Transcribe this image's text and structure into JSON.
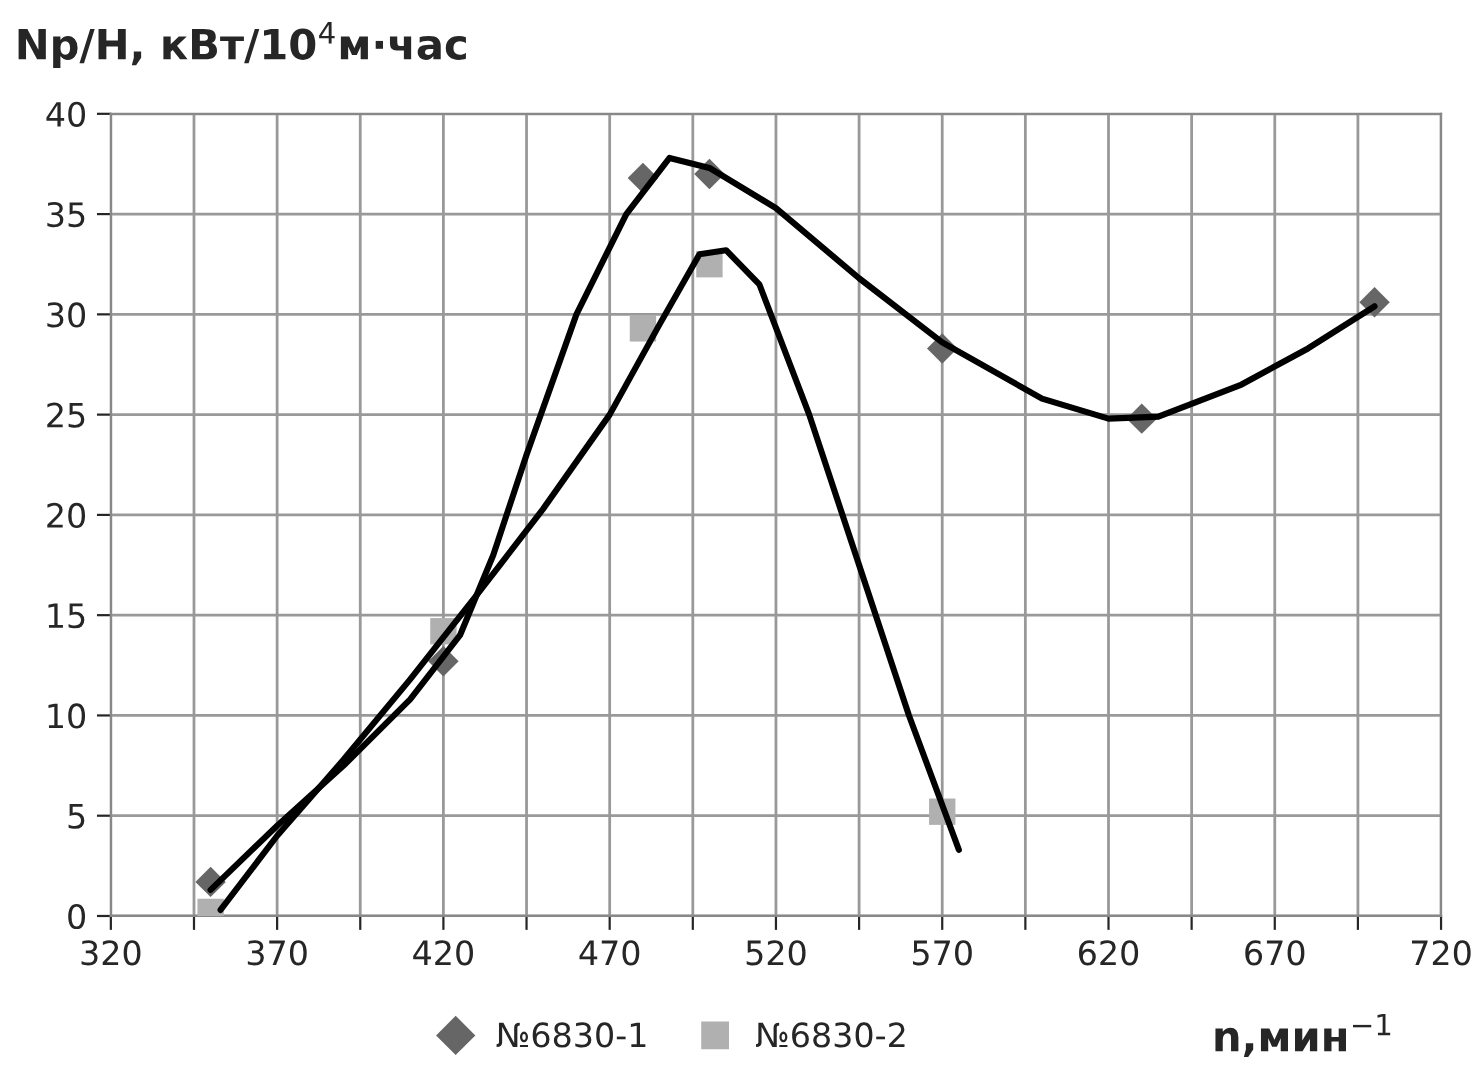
{
  "chart_data": {
    "type": "scatter",
    "ylabel": "Np/H, кВт/10$^{4}$м·час",
    "xlabel": "n,мин$^{−1}$",
    "xlim": [
      320,
      720
    ],
    "ylim": [
      0,
      40
    ],
    "xticks": [
      320,
      {
        "value": 345,
        "label": null
      },
      370,
      {
        "value": 395,
        "label": null
      },
      420,
      {
        "value": 445,
        "label": null
      },
      470,
      {
        "value": 495,
        "label": null
      },
      520,
      {
        "value": 545,
        "label": null
      },
      570,
      {
        "value": 595,
        "label": null
      },
      620,
      {
        "value": 645,
        "label": null
      },
      670,
      {
        "value": 695,
        "label": null
      },
      720
    ],
    "yticks": [
      0,
      5,
      10,
      15,
      20,
      25,
      30,
      35,
      40
    ],
    "grid": true,
    "legend": "bottom",
    "series": [
      {
        "name": "№6830-1",
        "color": "#666666",
        "marker": "diamond",
        "x": [
          350,
          420,
          480,
          500,
          570,
          630,
          700
        ],
        "values": [
          1.7,
          12.7,
          36.8,
          37.0,
          28.3,
          24.8,
          30.6
        ]
      },
      {
        "name": "№6830-2",
        "color": "#b0b0b0",
        "marker": "square",
        "x": [
          350,
          420,
          480,
          500,
          570
        ],
        "values": [
          0.2,
          14.2,
          29.3,
          32.5,
          5.2
        ]
      },
      {
        "type": "line",
        "color": "#000000",
        "marker": "none",
        "line_style": "solid",
        "x": [
          350,
          370,
          390,
          410,
          425,
          435,
          445,
          460,
          475,
          488,
          500,
          520,
          545,
          570,
          600,
          620,
          635,
          660,
          680,
          700
        ],
        "values": [
          1.3,
          4.5,
          7.5,
          10.8,
          14,
          18,
          23,
          30,
          35,
          37.8,
          37.3,
          35.3,
          31.8,
          28.6,
          25.8,
          24.8,
          24.9,
          26.5,
          28.3,
          30.4
        ]
      },
      {
        "type": "line",
        "color": "#000000",
        "marker": "none",
        "line_style": "solid",
        "x": [
          353,
          370,
          390,
          410,
          430,
          450,
          470,
          485,
          497,
          505,
          515,
          530,
          545,
          560,
          575
        ],
        "values": [
          0.3,
          4,
          7.8,
          11.8,
          16,
          20.3,
          25,
          29.5,
          33,
          33.2,
          31.5,
          25,
          17.5,
          10,
          3.3
        ]
      }
    ]
  }
}
